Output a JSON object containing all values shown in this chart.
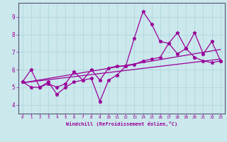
{
  "title": "",
  "xlabel": "Windchill (Refroidissement éolien,°C)",
  "xlim": [
    -0.5,
    23.5
  ],
  "ylim": [
    3.5,
    9.8
  ],
  "yticks": [
    4,
    5,
    6,
    7,
    8,
    9
  ],
  "xticks": [
    0,
    1,
    2,
    3,
    4,
    5,
    6,
    7,
    8,
    9,
    10,
    11,
    12,
    13,
    14,
    15,
    16,
    17,
    18,
    19,
    20,
    21,
    22,
    23
  ],
  "bg_color": "#cbe8ec",
  "line_color": "#990099",
  "spine_color": "#555577",
  "grid_color": "#aad4dc",
  "line1_y": [
    5.3,
    6.0,
    5.0,
    5.3,
    4.6,
    5.0,
    5.3,
    5.4,
    5.5,
    4.2,
    5.4,
    5.7,
    6.2,
    7.8,
    9.3,
    8.6,
    7.6,
    7.5,
    8.1,
    7.2,
    8.1,
    6.9,
    7.6,
    6.5
  ],
  "line2_y": [
    5.3,
    5.0,
    5.0,
    5.2,
    5.0,
    5.2,
    5.9,
    5.4,
    6.0,
    5.4,
    6.1,
    6.2,
    6.2,
    6.3,
    6.5,
    6.6,
    6.7,
    7.5,
    6.9,
    7.2,
    6.7,
    6.5,
    6.4,
    6.5
  ],
  "trend1_x": [
    0,
    23
  ],
  "trend1_y": [
    5.25,
    6.6
  ],
  "trend2_x": [
    0,
    23
  ],
  "trend2_y": [
    5.25,
    7.15
  ]
}
